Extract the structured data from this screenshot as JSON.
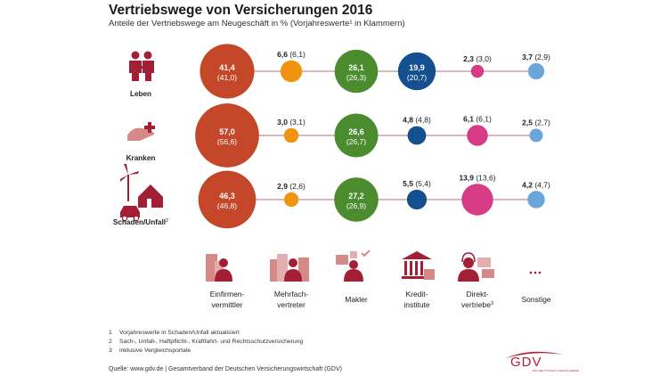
{
  "title": "Vertriebswege von Versicherungen 2016",
  "subtitle": "Anteile der Vertriebswege am Neugeschäft in % (Vorjahreswerte¹ in Klammern)",
  "colors": {
    "line": "#c98a8f",
    "icon": "#a31f35",
    "channels": [
      "#c4472a",
      "#f0930e",
      "#4a8c2e",
      "#14508e",
      "#d63c86",
      "#6aa5dc"
    ]
  },
  "chart_data": {
    "type": "bubble",
    "title": "Vertriebswege von Versicherungen 2016",
    "subtitle": "Anteile der Vertriebswege am Neugeschäft in % (Vorjahreswerte¹ in Klammern)",
    "unit": "%",
    "rows": [
      {
        "label": "Leben",
        "label_sup": "",
        "icon": "family-icon",
        "values": [
          41.4,
          6.6,
          26.1,
          19.9,
          2.3,
          3.7
        ],
        "prev": [
          41.0,
          6.1,
          26.3,
          20.7,
          3.0,
          2.9
        ]
      },
      {
        "label": "Kranken",
        "label_sup": "",
        "icon": "health-care-hand-icon",
        "values": [
          57.0,
          3.0,
          26.6,
          4.8,
          6.1,
          2.5
        ],
        "prev": [
          56.6,
          3.1,
          26.7,
          4.8,
          6.1,
          2.7
        ]
      },
      {
        "label": "Schaden/Unfall",
        "label_sup": "2",
        "icon": "house-car-windmill-icon",
        "values": [
          46.3,
          2.9,
          27.2,
          5.5,
          13.9,
          4.2
        ],
        "prev": [
          46.8,
          2.6,
          26.9,
          5.4,
          13.6,
          4.7
        ]
      }
    ],
    "channels": [
      {
        "line1": "Einfirmen-",
        "line2": "vermittler",
        "sup": "",
        "icon": "office-agent-icon"
      },
      {
        "line1": "Mehrfach-",
        "line2": "vertreter",
        "sup": "",
        "icon": "multi-office-agent-icon"
      },
      {
        "line1": "",
        "line2": "Makler",
        "sup": "",
        "icon": "broker-icon"
      },
      {
        "line1": "Kredit-",
        "line2": "institute",
        "sup": "",
        "icon": "bank-icon"
      },
      {
        "line1": "Direkt-",
        "line2": "vertriebe",
        "sup": "3",
        "icon": "call-center-icon"
      },
      {
        "line1": "",
        "line2": "Sonstige",
        "sup": "",
        "icon": "dots-icon"
      }
    ]
  },
  "footnotes": [
    {
      "num": "1",
      "text": "Vorjahreswerte in Schaden/Unfall aktualisiert"
    },
    {
      "num": "2",
      "text": "Sach-, Unfall-, Haftpflicht-, Kraftfahrt- und Rechtsschutzversicherung"
    },
    {
      "num": "3",
      "text": "inklusive Vergleichsportale"
    }
  ],
  "source": "Quelle: www.gdv.de | Gesamtverband der Deutschen Versicherungswirtschaft (GDV)",
  "logo": {
    "text": "GDV",
    "subtext": "DIE DEUTSCHEN VERSICHERER"
  }
}
